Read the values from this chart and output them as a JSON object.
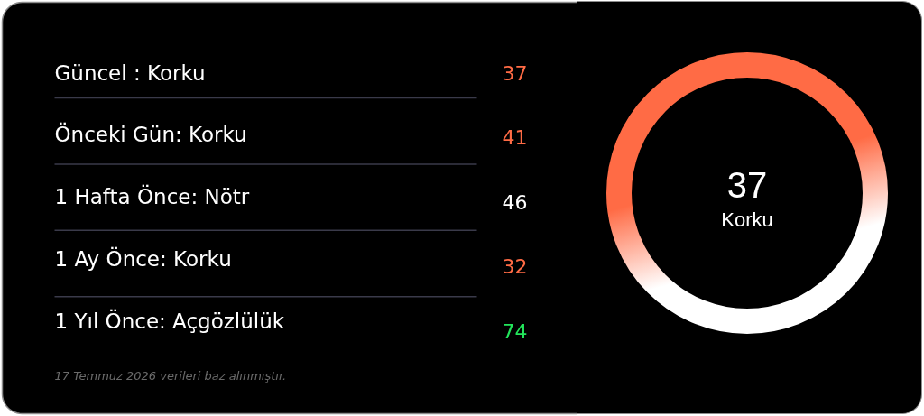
{
  "chart_data": {
    "type": "other",
    "categories": [
      "Güncel : Korku",
      "Önceki Gün: Korku",
      "1 Hafta Önce: Nötr",
      "1 Ay Önce: Korku",
      "1 Yıl Önce: Açgözlülük"
    ],
    "values": [
      37,
      41,
      46,
      32,
      74
    ],
    "colors": [
      "#ff6b45",
      "#ff6b45",
      "#ffffff",
      "#ff6b45",
      "#22e55b"
    ],
    "data_labels": true,
    "annotations": [
      "37",
      "Korku",
      "17 Temmuz 2026 verileri baz alınmıştır."
    ]
  }
}
